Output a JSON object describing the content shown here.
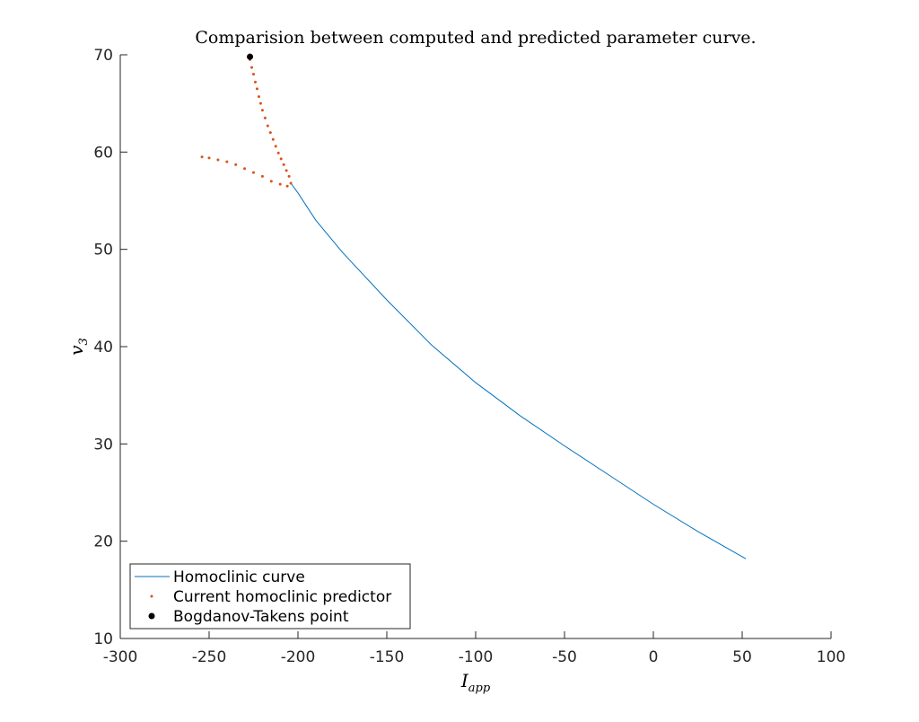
{
  "chart_data": {
    "type": "line",
    "title": "Comparision between computed and predicted parameter curve.",
    "xlabel": {
      "main": "I",
      "sub": "app"
    },
    "ylabel": {
      "main": "v",
      "sub": "3"
    },
    "xlim": [
      -300,
      100
    ],
    "xticks": [
      -300,
      -250,
      -200,
      -150,
      -100,
      -50,
      0,
      50,
      100
    ],
    "ylim": [
      10,
      70
    ],
    "yticks": [
      10,
      20,
      30,
      40,
      50,
      60,
      70
    ],
    "legend": "lower left",
    "series": [
      {
        "name": "Homoclinic curve",
        "color": "#0072bd",
        "style": "line",
        "x": [
          -204,
          -200,
          -190,
          -175,
          -150,
          -125,
          -100,
          -75,
          -50,
          -25,
          0,
          25,
          52
        ],
        "values": [
          56.8,
          55.8,
          53,
          49.7,
          44.8,
          40.2,
          36.3,
          32.9,
          29.8,
          26.8,
          23.8,
          21,
          18.2
        ]
      },
      {
        "name": "Current homoclinic predictor",
        "color": "#d95319",
        "style": "dots",
        "x": [
          -227,
          -226,
          -225,
          -224,
          -223,
          -222,
          -221,
          -220,
          -218.5,
          -217,
          -215.5,
          -214,
          -212.5,
          -211,
          -209.5,
          -208,
          -206.5,
          -205,
          -204,
          -206,
          -210,
          -215,
          -220,
          -225,
          -230,
          -235,
          -240,
          -245,
          -250,
          -254
        ],
        "values": [
          69.5,
          68.7,
          68,
          67.2,
          66.5,
          65.7,
          65,
          64.3,
          63.5,
          62.7,
          62,
          61.3,
          60.6,
          59.9,
          59.3,
          58.7,
          58.1,
          57.5,
          56.8,
          56.5,
          56.7,
          57,
          57.5,
          57.9,
          58.3,
          58.7,
          59,
          59.2,
          59.4,
          59.5
        ]
      },
      {
        "name": "Bogdanov-Takens point",
        "color": "#000000",
        "style": "marker",
        "x": [
          -227
        ],
        "values": [
          69.8
        ]
      }
    ]
  }
}
